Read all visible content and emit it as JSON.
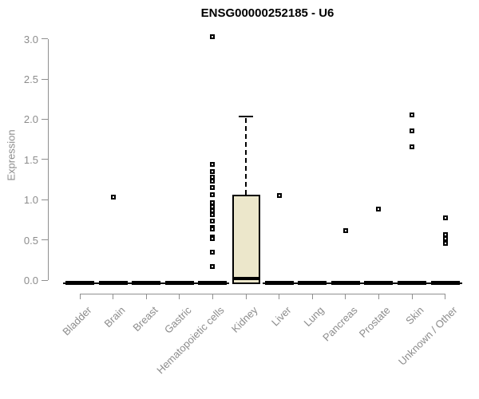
{
  "title": "ENSG00000252185 - U6",
  "chart_data": {
    "type": "boxplot",
    "title": "ENSG00000252185 - U6",
    "xlabel": "",
    "ylabel": "Expression",
    "ylim": [
      0,
      3.0
    ],
    "yticks": [
      0.0,
      0.5,
      1.0,
      1.5,
      2.0,
      2.5,
      3.0
    ],
    "grid": false,
    "legend": "none",
    "categories": [
      "Bladder",
      "Brain",
      "Breast",
      "Gastric",
      "Hematopoietic cells",
      "Kidney",
      "Liver",
      "Lung",
      "Pancreas",
      "Prostate",
      "Skin",
      "Unknown / Other"
    ],
    "boxes": [
      {
        "category": "Bladder",
        "median": 0,
        "q1": 0,
        "q3": 0,
        "whisker_low": 0,
        "whisker_high": 0,
        "outliers": []
      },
      {
        "category": "Brain",
        "median": 0,
        "q1": 0,
        "q3": 0,
        "whisker_low": 0,
        "whisker_high": 0,
        "outliers": [
          1.03
        ]
      },
      {
        "category": "Breast",
        "median": 0,
        "q1": 0,
        "q3": 0,
        "whisker_low": 0,
        "whisker_high": 0,
        "outliers": []
      },
      {
        "category": "Gastric",
        "median": 0,
        "q1": 0,
        "q3": 0,
        "whisker_low": 0,
        "whisker_high": 0,
        "outliers": []
      },
      {
        "category": "Hematopoietic cells",
        "median": 0,
        "q1": 0,
        "q3": 0,
        "whisker_low": 0,
        "whisker_high": 0,
        "outliers": [
          3.03,
          1.44,
          1.35,
          1.28,
          1.23,
          1.15,
          1.06,
          0.96,
          0.91,
          0.86,
          0.81,
          0.73,
          0.65,
          0.63,
          0.54,
          0.52,
          0.35,
          0.17
        ]
      },
      {
        "category": "Kidney",
        "median": 0.02,
        "q1": 0,
        "q3": 1.06,
        "whisker_low": 0,
        "whisker_high": 2.03,
        "outliers": []
      },
      {
        "category": "Liver",
        "median": 0,
        "q1": 0,
        "q3": 0,
        "whisker_low": 0,
        "whisker_high": 0,
        "outliers": [
          1.05
        ]
      },
      {
        "category": "Lung",
        "median": 0,
        "q1": 0,
        "q3": 0,
        "whisker_low": 0,
        "whisker_high": 0,
        "outliers": []
      },
      {
        "category": "Pancreas",
        "median": 0,
        "q1": 0,
        "q3": 0,
        "whisker_low": 0,
        "whisker_high": 0,
        "outliers": [
          0.62
        ]
      },
      {
        "category": "Prostate",
        "median": 0,
        "q1": 0,
        "q3": 0,
        "whisker_low": 0,
        "whisker_high": 0,
        "outliers": [
          0.88
        ]
      },
      {
        "category": "Skin",
        "median": 0,
        "q1": 0,
        "q3": 0,
        "whisker_low": 0,
        "whisker_high": 0,
        "outliers": [
          2.05,
          1.86,
          1.66
        ]
      },
      {
        "category": "Unknown / Other",
        "median": 0,
        "q1": 0,
        "q3": 0,
        "whisker_low": 0,
        "whisker_high": 0,
        "outliers": [
          0.77,
          0.57,
          0.52,
          0.46
        ]
      }
    ],
    "colors": {
      "box_fill": "#ece7cb",
      "box_border": "#000000",
      "whisker": "#000000",
      "outlier_border": "#000000",
      "axis": "#8f8f8f",
      "tick_label": "#8c8c8c",
      "title": "#000000",
      "background": "#ffffff"
    }
  }
}
